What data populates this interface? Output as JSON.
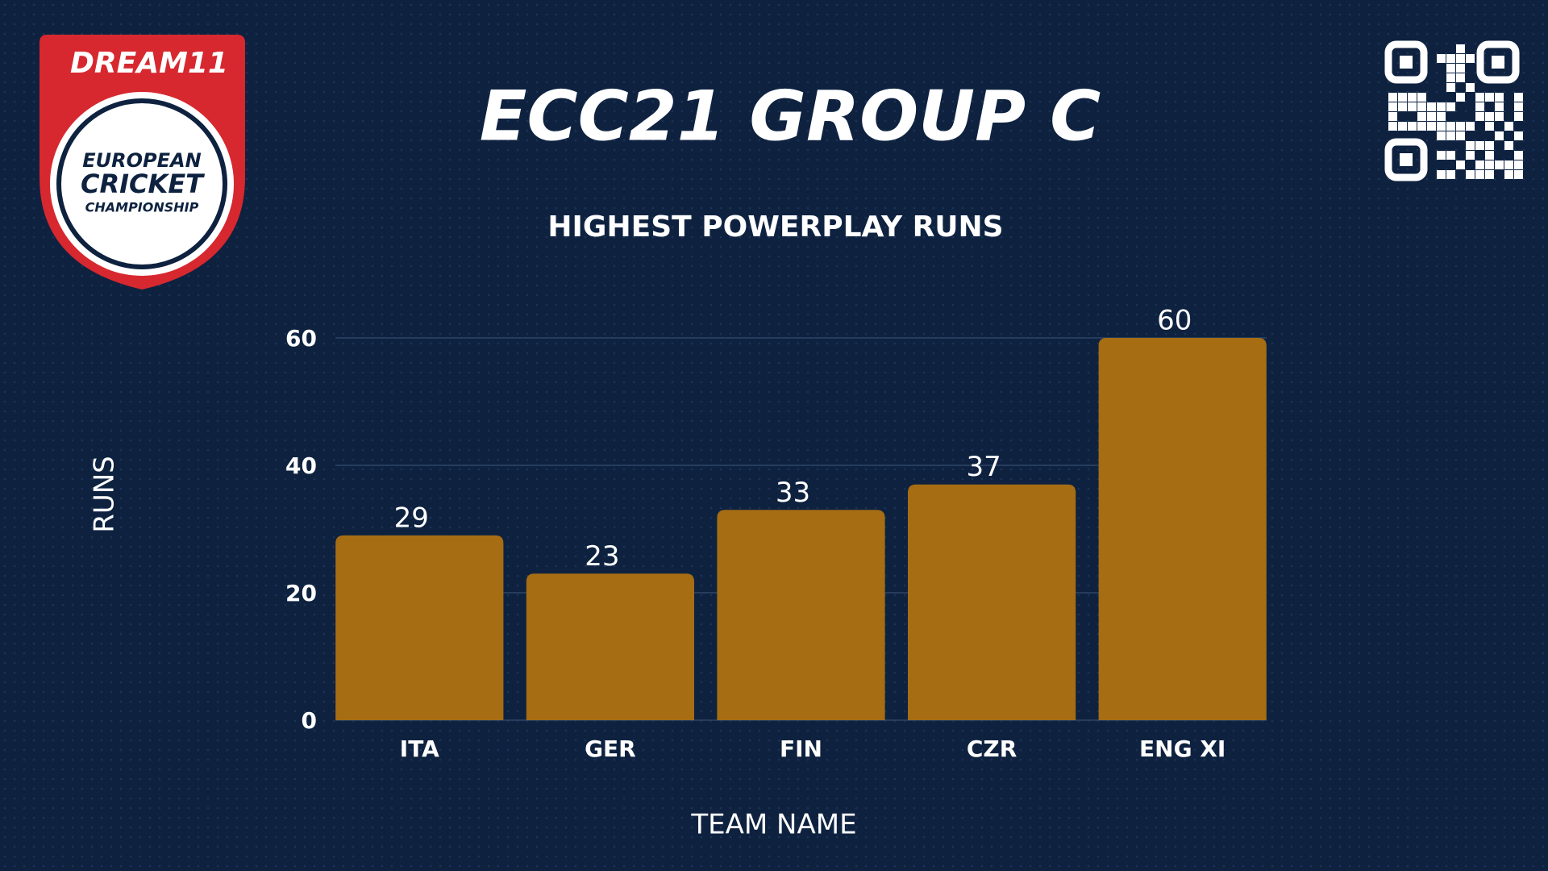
{
  "chart_data": {
    "type": "bar",
    "title": "ECC21 GROUP C",
    "subtitle": "HIGHEST POWERPLAY RUNS",
    "x_label": "TEAM NAME",
    "y_label": "RUNS",
    "categories": [
      "ITA",
      "GER",
      "FIN",
      "CZR",
      "ENG XI"
    ],
    "values": [
      29,
      23,
      33,
      37,
      60
    ],
    "color": "#a66d13",
    "ylim": [
      0,
      60
    ],
    "yticks": [
      0,
      20,
      40,
      60
    ],
    "grid": true
  },
  "logo": {
    "brand": "DREAM11",
    "lines": [
      "EUROPEAN",
      "CRICKET",
      "CHAMPIONSHIP"
    ]
  }
}
